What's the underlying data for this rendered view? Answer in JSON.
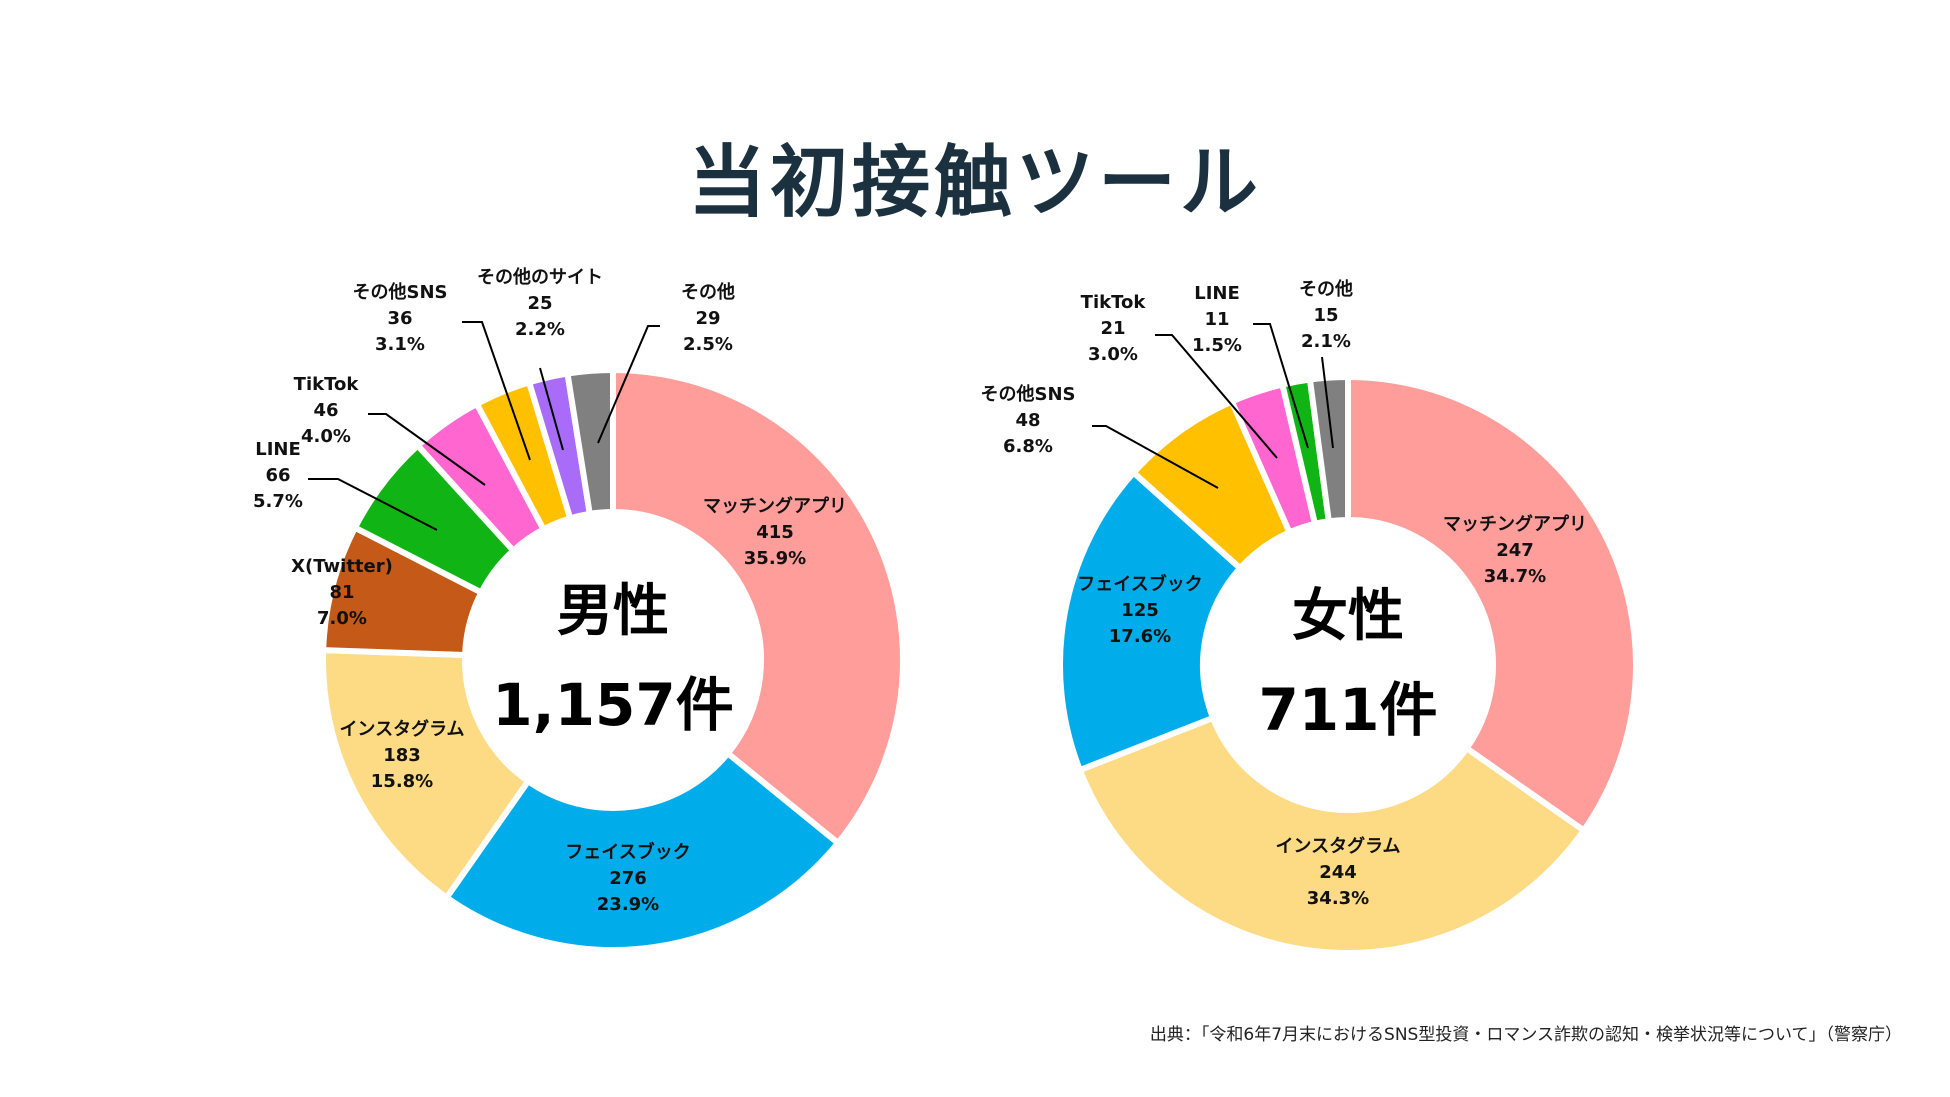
{
  "title": "当初接触ツール",
  "source": "出典：「令和6年7月末におけるSNS型投資・ロマンス詐欺の認知・検挙状況等について」（警察庁）",
  "chart_data": [
    {
      "type": "pie",
      "variant": "donut",
      "center_label": "男性",
      "center_total": "1,157件",
      "categories": [
        "マッチングアプリ",
        "フェイスブック",
        "インスタグラム",
        "X(Twitter)",
        "LINE",
        "TikTok",
        "その他SNS",
        "その他のサイト",
        "その他"
      ],
      "values": [
        415,
        276,
        183,
        81,
        66,
        46,
        36,
        25,
        29
      ],
      "percent_labels": [
        "35.9%",
        "23.9%",
        "15.8%",
        "7.0%",
        "5.7%",
        "4.0%",
        "3.1%",
        "2.2%",
        "2.5%"
      ],
      "colors": [
        "#ff9d9a",
        "#00adea",
        "#fdda84",
        "#c45918",
        "#10b414",
        "#ff66d0",
        "#ffc000",
        "#a86cf8",
        "#808080"
      ]
    },
    {
      "type": "pie",
      "variant": "donut",
      "center_label": "女性",
      "center_total": "711件",
      "categories": [
        "マッチングアプリ",
        "インスタグラム",
        "フェイスブック",
        "その他SNS",
        "TikTok",
        "LINE",
        "その他"
      ],
      "values": [
        247,
        244,
        125,
        48,
        21,
        11,
        15
      ],
      "percent_labels": [
        "34.7%",
        "34.3%",
        "17.6%",
        "6.8%",
        "3.0%",
        "1.5%",
        "2.1%"
      ],
      "colors": [
        "#ff9d9a",
        "#fdda84",
        "#00adea",
        "#ffc000",
        "#ff66d0",
        "#10b414",
        "#808080"
      ]
    }
  ]
}
